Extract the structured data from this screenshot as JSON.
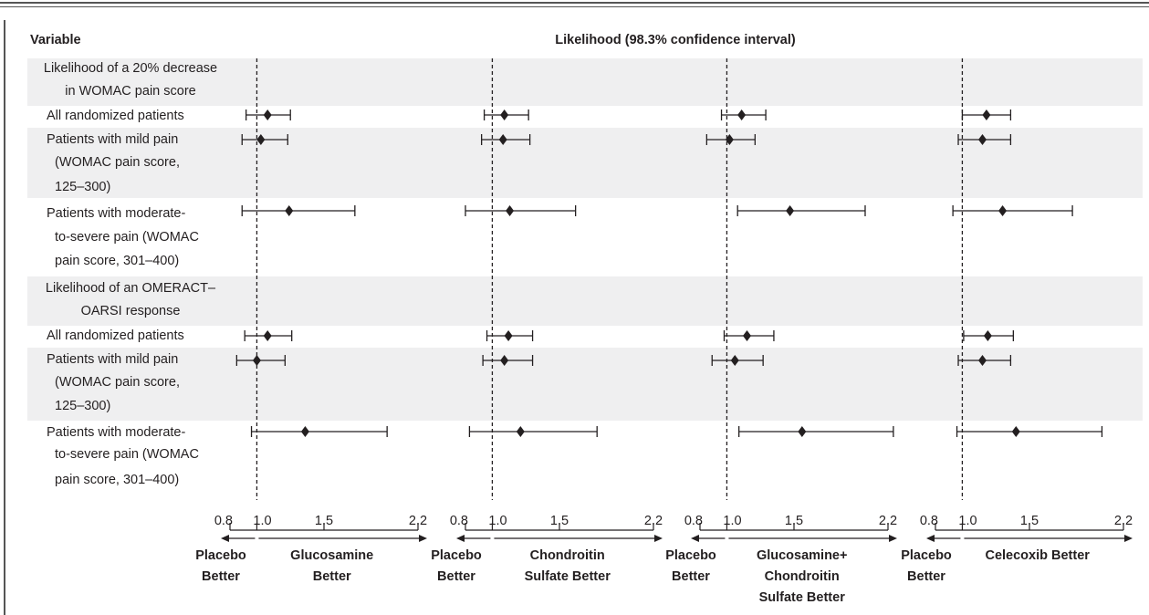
{
  "chart_data": {
    "type": "forest",
    "header": {
      "variable": "Variable",
      "likelihood": "Likelihood (98.3% confidence interval)"
    },
    "rows": [
      {
        "label_lines": [
          "Likelihood of a 20% decrease",
          "in WOMAC pain score"
        ],
        "section_header": true,
        "shaded": true
      },
      {
        "label_lines": [
          "All randomized patients"
        ],
        "section_header": false,
        "shaded": false
      },
      {
        "label_lines": [
          "Patients with mild pain",
          "(WOMAC pain score,",
          "125–300)"
        ],
        "section_header": false,
        "shaded": true
      },
      {
        "label_lines": [
          "Patients with moderate-",
          "to-severe pain (WOMAC",
          "pain score, 301–400)"
        ],
        "section_header": false,
        "shaded": false
      },
      {
        "label_lines": [
          "Likelihood of an OMERACT–",
          "OARSI response"
        ],
        "section_header": true,
        "shaded": true
      },
      {
        "label_lines": [
          "All randomized patients"
        ],
        "section_header": false,
        "shaded": false
      },
      {
        "label_lines": [
          "Patients with mild pain",
          "(WOMAC pain score,",
          "125–300)"
        ],
        "section_header": false,
        "shaded": true
      },
      {
        "label_lines": [
          "Patients with moderate-",
          "to-severe pain (WOMAC",
          "pain score, 301–400)"
        ],
        "section_header": false,
        "shaded": false
      }
    ],
    "xlim": [
      0.8,
      2.2
    ],
    "reference_value": 1.0,
    "tick_values": [
      0.8,
      1.0,
      1.5,
      2.2
    ],
    "tick_labels": [
      "0.8",
      "1.0",
      "1.5",
      "2.2"
    ],
    "panels": [
      {
        "left_label_lines": [
          "Placebo",
          "Better"
        ],
        "right_label_lines": [
          "Glucosamine",
          "Better"
        ],
        "estimates": [
          null,
          1.08,
          1.03,
          1.24,
          null,
          1.08,
          1.0,
          1.36
        ],
        "lower": [
          null,
          0.92,
          0.89,
          0.89,
          null,
          0.91,
          0.85,
          0.96
        ],
        "upper": [
          null,
          1.25,
          1.23,
          1.73,
          null,
          1.26,
          1.21,
          1.97
        ]
      },
      {
        "left_label_lines": [
          "Placebo",
          "Better"
        ],
        "right_label_lines": [
          "Chondroitin",
          "Sulfate Better"
        ],
        "estimates": [
          null,
          1.09,
          1.08,
          1.13,
          null,
          1.12,
          1.09,
          1.21
        ],
        "lower": [
          null,
          0.94,
          0.92,
          0.8,
          null,
          0.96,
          0.93,
          0.83
        ],
        "upper": [
          null,
          1.27,
          1.28,
          1.62,
          null,
          1.3,
          1.3,
          1.78
        ]
      },
      {
        "left_label_lines": [
          "Placebo",
          "Better"
        ],
        "right_label_lines": [
          "Glucosamine+",
          "Chondroitin",
          "Sulfate Better"
        ],
        "estimates": [
          null,
          1.11,
          1.02,
          1.47,
          null,
          1.15,
          1.06,
          1.56
        ],
        "lower": [
          null,
          0.96,
          0.85,
          1.08,
          null,
          0.98,
          0.89,
          1.09
        ],
        "upper": [
          null,
          1.29,
          1.21,
          2.03,
          null,
          1.35,
          1.27,
          2.24
        ]
      },
      {
        "left_label_lines": [
          "Placebo",
          "Better"
        ],
        "right_label_lines": [
          "Celecoxib Better"
        ],
        "estimates": [
          null,
          1.18,
          1.15,
          1.3,
          null,
          1.19,
          1.15,
          1.4
        ],
        "lower": [
          null,
          1.0,
          0.97,
          0.93,
          null,
          1.01,
          0.97,
          0.96
        ],
        "upper": [
          null,
          1.36,
          1.36,
          1.82,
          null,
          1.38,
          1.36,
          2.04
        ]
      }
    ]
  }
}
